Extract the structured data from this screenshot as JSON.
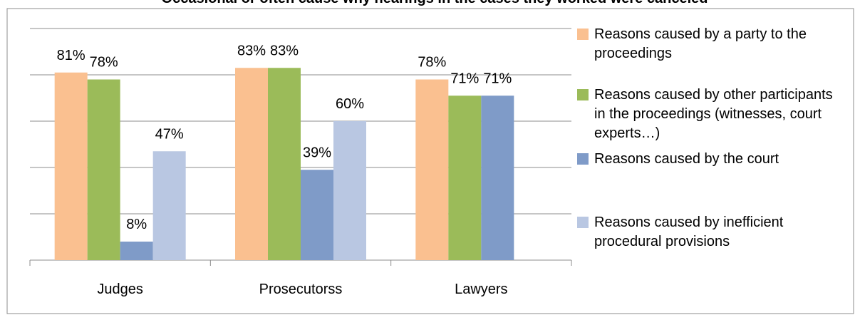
{
  "chart_data": {
    "type": "bar",
    "title": "Occasional or often cause why hearings in the cases they worked were canceled",
    "categories": [
      "Judges",
      "Prosecutorss",
      "Lawyers"
    ],
    "series": [
      {
        "name": "Reasons caused by a party to the proceedings",
        "color": "#FAC090",
        "values": [
          81,
          83,
          78
        ],
        "value_labels": [
          "81%",
          "83%",
          "78%"
        ]
      },
      {
        "name": "Reasons caused by other participants in the proceedings (witnesses, court experts…)",
        "color": "#9BBB59",
        "values": [
          78,
          83,
          71
        ],
        "value_labels": [
          "78%",
          "83%",
          "71%"
        ]
      },
      {
        "name": "Reasons caused by the court",
        "color": "#7F9BC8",
        "values": [
          8,
          39,
          71
        ],
        "value_labels": [
          "8%",
          "39%",
          "71%"
        ]
      },
      {
        "name": "Reasons caused by inefficient procedural provisions",
        "color": "#B9C7E2",
        "values": [
          47,
          60,
          null
        ],
        "value_labels": [
          "47%",
          "60%",
          null
        ]
      }
    ],
    "ylim": [
      0,
      100
    ],
    "yticks": [
      0,
      20,
      40,
      60,
      80,
      100
    ],
    "grid": true,
    "legend": "right"
  }
}
